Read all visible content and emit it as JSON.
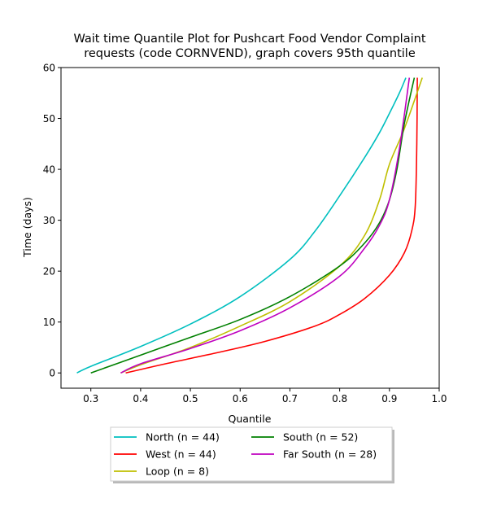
{
  "chart_data": {
    "type": "line",
    "title_line1": "Wait time Quantile Plot for Pushcart Food Vendor Complaint",
    "title_line2": "requests (code CORNVEND), graph covers 95th quantile",
    "xlabel": "Quantile",
    "ylabel": "Time (days)",
    "xlim": [
      0.24,
      1.0
    ],
    "ylim": [
      -3,
      60
    ],
    "xticks": [
      0.3,
      0.4,
      0.5,
      0.6,
      0.7,
      0.8,
      0.9,
      1.0
    ],
    "xtick_labels": [
      "0.3",
      "0.4",
      "0.5",
      "0.6",
      "0.7",
      "0.8",
      "0.9",
      "1.0"
    ],
    "yticks": [
      0,
      10,
      20,
      30,
      40,
      50,
      60
    ],
    "ytick_labels": [
      "0",
      "10",
      "20",
      "30",
      "40",
      "50",
      "60"
    ],
    "grid": false,
    "legend_placement": "below-center",
    "series": [
      {
        "name": "North (n = 44)",
        "color": "#00bfbf",
        "x": [
          0.272,
          0.3,
          0.4,
          0.5,
          0.6,
          0.7,
          0.75,
          0.8,
          0.85,
          0.88,
          0.9,
          0.92,
          0.933
        ],
        "y": [
          0,
          1.3,
          5.2,
          9.6,
          15.0,
          22.3,
          27.8,
          34.8,
          42.3,
          47.2,
          51.0,
          55.0,
          58
        ]
      },
      {
        "name": "West (n = 44)",
        "color": "#ff0000",
        "x": [
          0.37,
          0.45,
          0.55,
          0.65,
          0.75,
          0.8,
          0.85,
          0.9,
          0.93,
          0.945,
          0.952,
          0.955,
          0.956
        ],
        "y": [
          0,
          1.8,
          3.9,
          6.2,
          9.2,
          11.5,
          14.6,
          19.2,
          23.6,
          28.0,
          33.0,
          45.0,
          58
        ]
      },
      {
        "name": "Loop (n = 8)",
        "color": "#bfbf00",
        "x": [
          0.36,
          0.4,
          0.5,
          0.6,
          0.7,
          0.8,
          0.85,
          0.88,
          0.9,
          0.93,
          0.966
        ],
        "y": [
          0,
          1.6,
          5.0,
          9.2,
          14.0,
          21.0,
          27.0,
          34.0,
          41.0,
          48.0,
          58
        ]
      },
      {
        "name": "South (n = 52)",
        "color": "#008000",
        "x": [
          0.3,
          0.4,
          0.5,
          0.6,
          0.7,
          0.8,
          0.85,
          0.88,
          0.9,
          0.915,
          0.93,
          0.95
        ],
        "y": [
          0,
          3.5,
          7.0,
          10.5,
          15.0,
          21.0,
          25.5,
          29.5,
          34.0,
          40.0,
          49.0,
          58
        ]
      },
      {
        "name": "Far South (n = 28)",
        "color": "#bf00bf",
        "x": [
          0.36,
          0.4,
          0.5,
          0.6,
          0.7,
          0.8,
          0.85,
          0.88,
          0.9,
          0.92,
          0.94
        ],
        "y": [
          0,
          1.8,
          4.8,
          8.3,
          12.8,
          19.0,
          24.5,
          29.0,
          34.0,
          44.0,
          58
        ]
      }
    ]
  }
}
